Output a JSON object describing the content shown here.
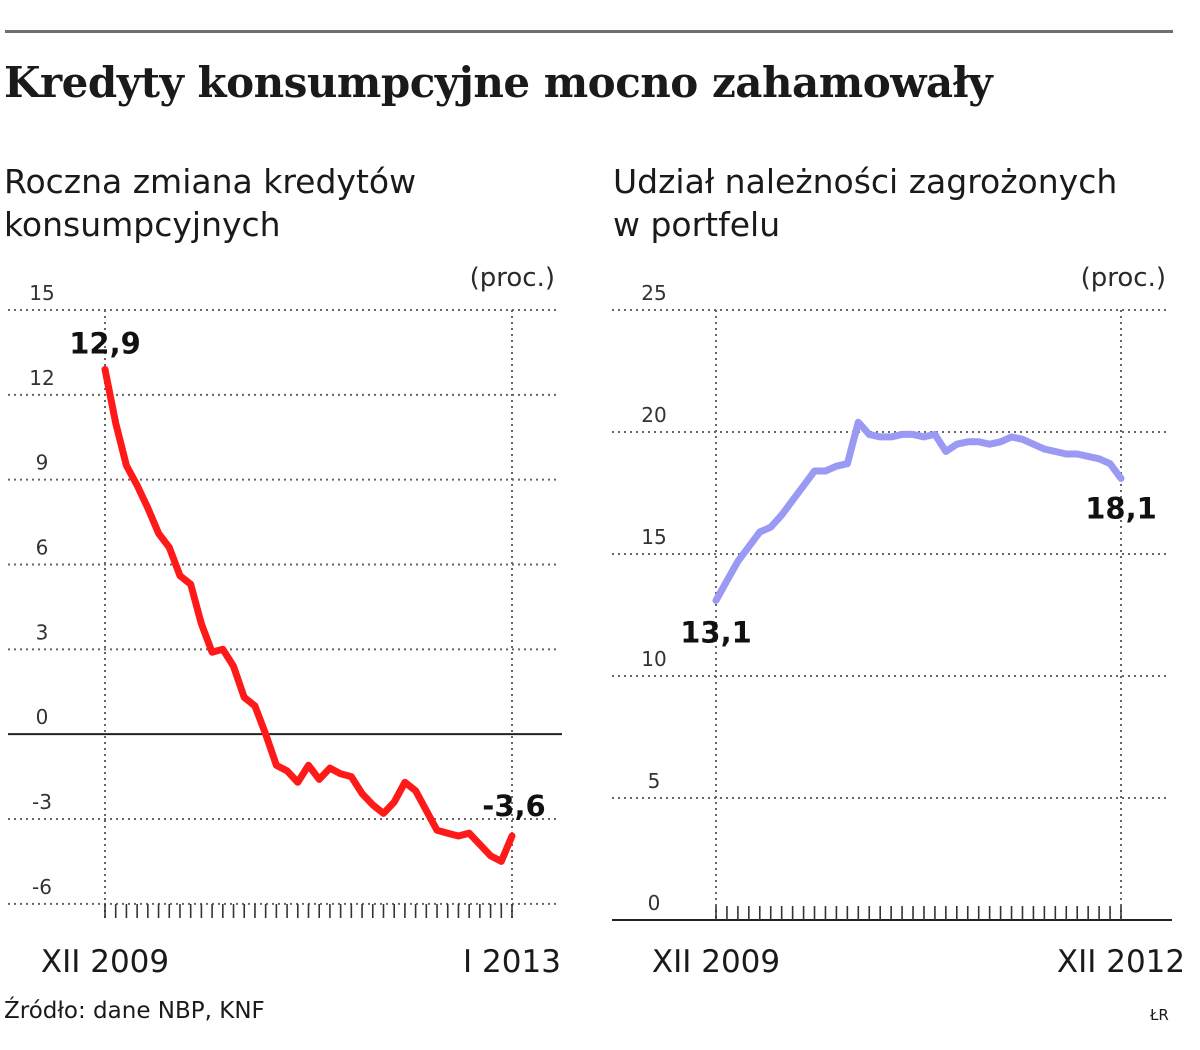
{
  "title": "Kredyty konsumpcyjne mocno zahamowały",
  "source": "Źródło: dane NBP, KNF",
  "credit": "ŁR",
  "chart_data": [
    {
      "type": "line",
      "subtitle": [
        "Roczna zmiana kredytów",
        "konsumpcyjnych"
      ],
      "unit": "(proc.)",
      "x_start_label": "XII 2009",
      "x_end_label": "I 2013",
      "yticks": [
        15,
        12,
        9,
        6,
        3,
        0,
        -3,
        -6
      ],
      "ylim": [
        -6.5,
        15
      ],
      "grid": true,
      "series": [
        {
          "color": "#ff1a1a",
          "values": [
            12.9,
            11.0,
            9.5,
            8.8,
            8.0,
            7.1,
            6.6,
            5.6,
            5.3,
            3.9,
            2.9,
            3.0,
            2.4,
            1.3,
            1.0,
            0.0,
            -1.1,
            -1.3,
            -1.7,
            -1.1,
            -1.6,
            -1.2,
            -1.4,
            -1.5,
            -2.1,
            -2.5,
            -2.8,
            -2.4,
            -1.7,
            -2.0,
            -2.7,
            -3.4,
            -3.5,
            -3.6,
            -3.5,
            -3.9,
            -4.3,
            -4.5,
            -3.6
          ]
        }
      ],
      "data_labels": [
        {
          "index": 0,
          "text": "12,9"
        },
        {
          "index": 38,
          "text": "-3,6"
        }
      ]
    },
    {
      "type": "line",
      "subtitle": [
        "Udział należności zagrożonych",
        "w portfelu"
      ],
      "unit": "(proc.)",
      "x_start_label": "XII 2009",
      "x_end_label": "XII 2012",
      "yticks": [
        25,
        20,
        15,
        10,
        5,
        0
      ],
      "ylim": [
        0,
        25
      ],
      "grid": true,
      "series": [
        {
          "color": "#9a9af5",
          "values": [
            13.1,
            13.9,
            14.7,
            15.3,
            15.9,
            16.1,
            16.6,
            17.2,
            17.8,
            18.4,
            18.4,
            18.6,
            18.7,
            20.4,
            19.9,
            19.8,
            19.8,
            19.9,
            19.9,
            19.8,
            19.9,
            19.2,
            19.5,
            19.6,
            19.6,
            19.5,
            19.6,
            19.8,
            19.7,
            19.5,
            19.3,
            19.2,
            19.1,
            19.1,
            19.0,
            18.9,
            18.7,
            18.1
          ]
        }
      ],
      "data_labels": [
        {
          "index": 0,
          "text": "13,1"
        },
        {
          "index": 37,
          "text": "18,1"
        }
      ]
    }
  ]
}
